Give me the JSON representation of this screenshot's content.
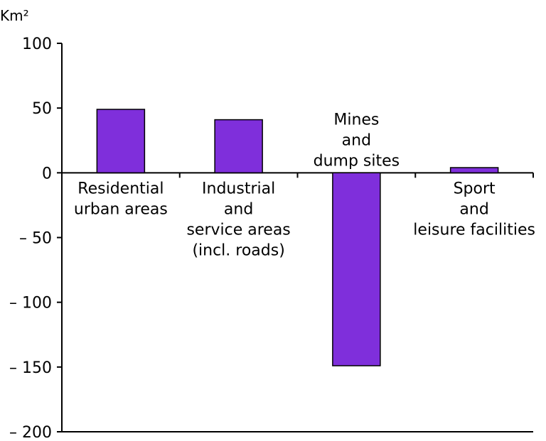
{
  "chart_data": {
    "type": "bar",
    "ylabel": "Km²",
    "ylim": [
      -200,
      100
    ],
    "yticks": [
      100,
      50,
      0,
      -50,
      -100,
      -150,
      -200
    ],
    "ytick_labels": [
      "100",
      "50",
      "0",
      "– 50",
      "– 100",
      "– 150",
      "– 200"
    ],
    "grid": false,
    "categories": [
      {
        "lines": [
          "Residential",
          "urban areas"
        ]
      },
      {
        "lines": [
          "Industrial",
          "and",
          "service areas",
          "(incl. roads)"
        ]
      },
      {
        "lines": [
          "Mines",
          "and",
          "dump sites"
        ]
      },
      {
        "lines": [
          "Sport",
          "and",
          "leisure facilities"
        ]
      }
    ],
    "values": [
      49,
      41,
      -149,
      4
    ],
    "colors": {
      "bar": "#7F2FDB",
      "axis": "#000000"
    }
  }
}
